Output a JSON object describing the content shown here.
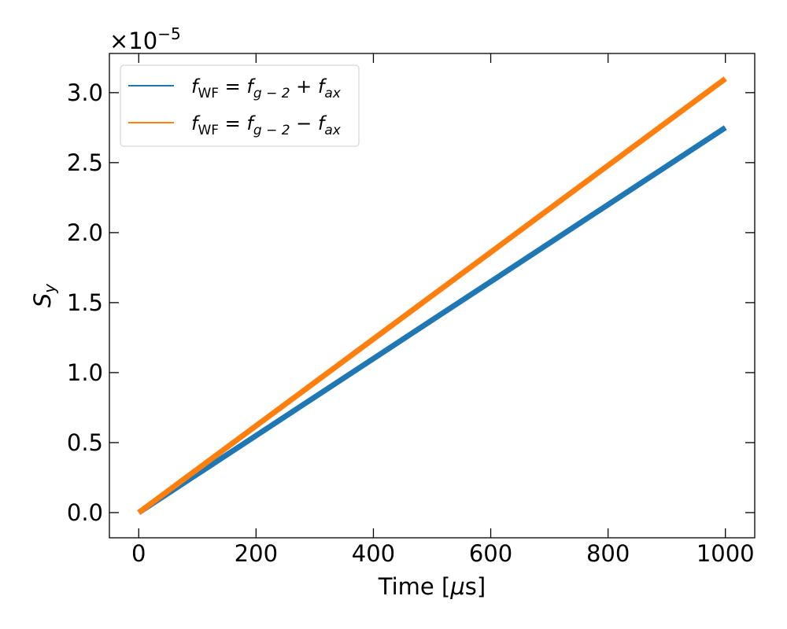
{
  "chart_data": {
    "type": "line",
    "xlabel_main": "Time [",
    "xlabel_mu": "μ",
    "xlabel_tail": "s]",
    "ylabel_main": "S",
    "ylabel_sub": "y",
    "y_scale_base": "×10",
    "y_scale_exp": "−5",
    "y_scale_factor": 1e-05,
    "xlim": [
      -50,
      1050
    ],
    "ylim": [
      -0.18,
      3.28
    ],
    "xticks": [
      0,
      200,
      400,
      600,
      800,
      1000
    ],
    "xtick_labels": [
      "0",
      "200",
      "400",
      "600",
      "800",
      "1000"
    ],
    "yticks": [
      0.0,
      0.5,
      1.0,
      1.5,
      2.0,
      2.5,
      3.0
    ],
    "ytick_labels": [
      "0.0",
      "0.5",
      "1.0",
      "1.5",
      "2.0",
      "2.5",
      "3.0"
    ],
    "grid": false,
    "legend_position": "top-left",
    "series": [
      {
        "name": "f_WF = f_{g−2} + f_ax",
        "legend": {
          "f": "f",
          "wf": "WF",
          "eq": " = ",
          "g": "f",
          "gsub": "g − 2",
          "op": " + ",
          "ax": "f",
          "axsub": "ax"
        },
        "color": "#1f77b4",
        "x": [
          0,
          1000
        ],
        "y": [
          0.0,
          2.75
        ]
      },
      {
        "name": "f_WF = f_{g−2} − f_ax",
        "legend": {
          "f": "f",
          "wf": "WF",
          "eq": " = ",
          "g": "f",
          "gsub": "g − 2",
          "op": " − ",
          "ax": "f",
          "axsub": "ax"
        },
        "color": "#ff7f0e",
        "x": [
          0,
          1000
        ],
        "y": [
          0.0,
          3.1
        ]
      }
    ]
  }
}
